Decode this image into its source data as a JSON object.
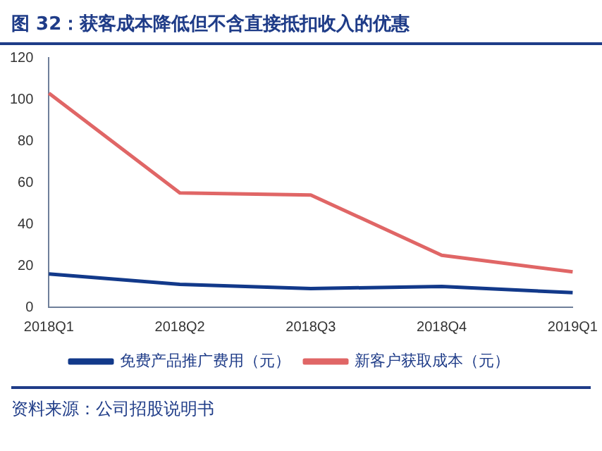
{
  "chart_data": {
    "type": "line",
    "title": "图 32：获客成本降低但不含直接抵扣收入的优惠",
    "categories": [
      "2018Q1",
      "2018Q2",
      "2018Q3",
      "2018Q4",
      "2019Q1"
    ],
    "series": [
      {
        "name": "免费产品推广费用（元）",
        "color": "#12398a",
        "values": [
          16,
          11,
          9,
          10,
          7
        ]
      },
      {
        "name": "新客户获取成本（元）",
        "color": "#e06666",
        "values": [
          103,
          55,
          54,
          25,
          17
        ]
      }
    ],
    "ylim": [
      0,
      120
    ],
    "yticks": [
      0,
      20,
      40,
      60,
      80,
      100,
      120
    ],
    "grid": false,
    "legend": "bottom",
    "marker": "none",
    "annotations": [
      "资料来源：公司招股说明书"
    ]
  }
}
